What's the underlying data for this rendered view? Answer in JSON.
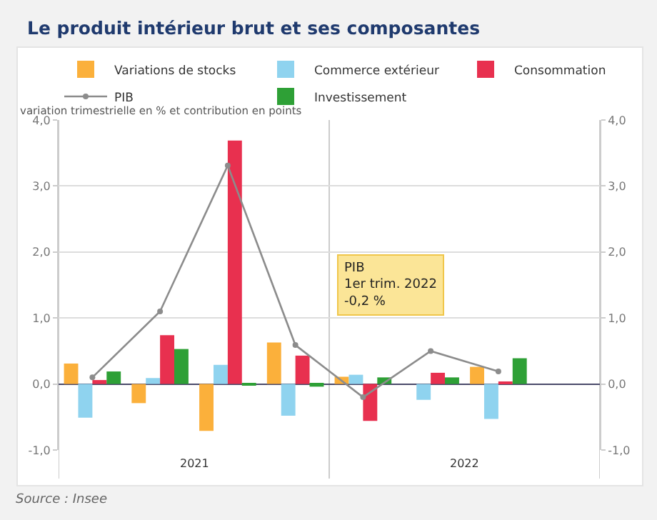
{
  "chart_data": {
    "type": "bar",
    "title": "Le produit intérieur brut et ses composantes",
    "ylabel": "variation trimestrielle en % et contribution en points",
    "categories": [
      null,
      null,
      null,
      null,
      null,
      null,
      null,
      null
    ],
    "series": [
      {
        "name": "Variations de stocks",
        "color": "#fbb03b",
        "values": [
          0.31,
          -0.29,
          -0.71,
          0.63,
          0.11,
          null,
          0.26,
          null
        ]
      },
      {
        "name": "Commerce extérieur",
        "color": "#8fd3ef",
        "values": [
          -0.51,
          0.09,
          0.29,
          -0.48,
          0.14,
          -0.24,
          -0.53,
          null
        ]
      },
      {
        "name": "Consommation",
        "color": "#e8304f",
        "values": [
          0.06,
          0.74,
          3.69,
          0.43,
          -0.56,
          0.17,
          0.03,
          null
        ]
      },
      {
        "name": "PIB",
        "type": "line",
        "color": "#8c8c8c",
        "marker": "circle",
        "values": [
          0.1,
          1.1,
          3.31,
          0.59,
          -0.2,
          0.5,
          0.19,
          null
        ]
      },
      {
        "name": "Investissement",
        "color": "#2ea036",
        "values": [
          0.19,
          0.53,
          -0.01,
          -0.04,
          0.1,
          0.1,
          0.39,
          null
        ]
      }
    ],
    "ylim": [
      -1,
      4
    ],
    "yticks": [
      {
        "value": -1,
        "label": "-1,0"
      },
      {
        "value": 0,
        "label": "0,0"
      },
      {
        "value": 1,
        "label": "1,0"
      },
      {
        "value": 2,
        "label": "2,0"
      },
      {
        "value": 3,
        "label": "3,0"
      },
      {
        "value": 4,
        "label": "4,0"
      }
    ],
    "y2lim": [
      -1,
      4
    ],
    "y2ticks": [
      {
        "value": -1,
        "label": "-1,0"
      },
      {
        "value": 0,
        "label": "0,0"
      },
      {
        "value": 1,
        "label": "1,0"
      },
      {
        "value": 2,
        "label": "2,0"
      },
      {
        "value": 3,
        "label": "3,0"
      },
      {
        "value": 4,
        "label": "4,0"
      }
    ],
    "grid": "y",
    "legend": "top",
    "tick_labels": "y",
    "annotations": [
      "2021",
      "2022",
      "PIB\n1er trim. 2022\n-0,2 %",
      "Source : Insee"
    ]
  }
}
